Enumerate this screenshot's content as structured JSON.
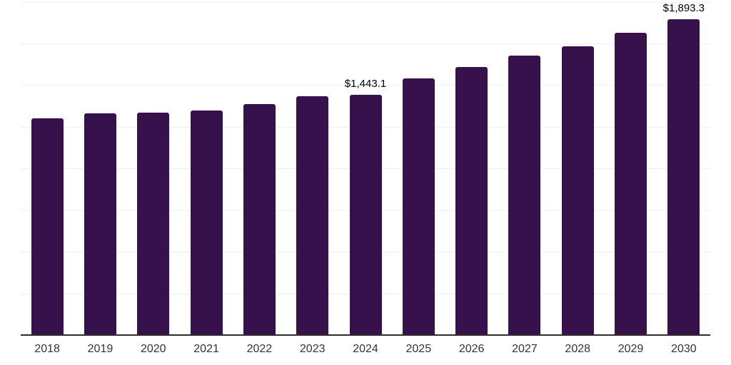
{
  "chart_data": {
    "type": "bar",
    "title": "",
    "xlabel": "",
    "ylabel": "",
    "categories": [
      "2018",
      "2019",
      "2020",
      "2021",
      "2022",
      "2023",
      "2024",
      "2025",
      "2026",
      "2027",
      "2028",
      "2029",
      "2030"
    ],
    "values": [
      1300,
      1331,
      1335,
      1346,
      1388,
      1435,
      1443.1,
      1540,
      1608,
      1679,
      1733,
      1813,
      1893.3
    ],
    "data_labels": [
      "",
      "",
      "",
      "",
      "",
      "",
      "$1,443.1",
      "",
      "",
      "",
      "",
      "",
      "$1,893.3"
    ],
    "ylim": [
      0,
      2000
    ],
    "gridline_step": 250,
    "grid": true,
    "legend": false,
    "y_axis_tick_labels_visible": false,
    "colors": {
      "bar": "#36114C",
      "axis": "#2E2E2E",
      "gridline": "#EFEFEF",
      "tick_label": "#333333",
      "data_label": "#000000",
      "background": "#FFFFFF"
    }
  }
}
